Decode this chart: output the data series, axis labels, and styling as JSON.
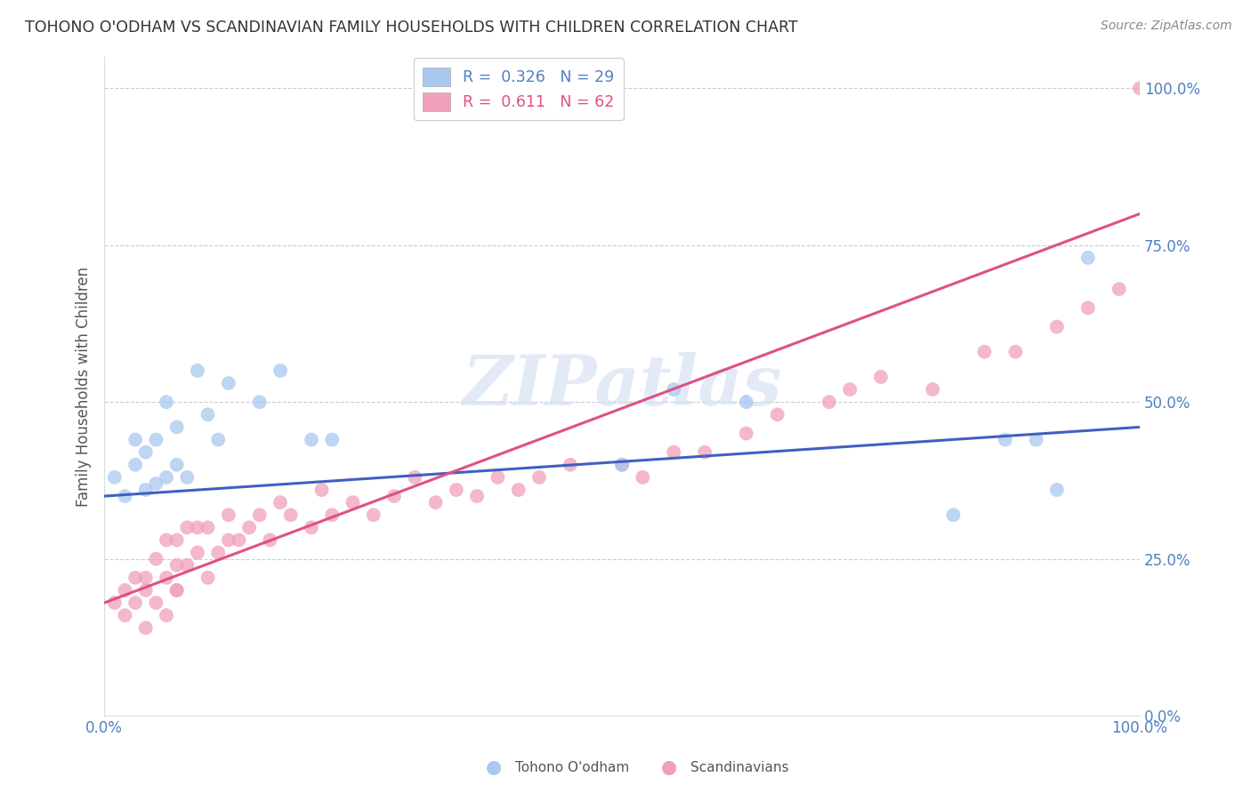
{
  "title": "TOHONO O'ODHAM VS SCANDINAVIAN FAMILY HOUSEHOLDS WITH CHILDREN CORRELATION CHART",
  "source": "Source: ZipAtlas.com",
  "ylabel": "Family Households with Children",
  "watermark": "ZIPatlas",
  "blue_label": "Tohono O'odham",
  "pink_label": "Scandinavians",
  "blue_R": "0.326",
  "blue_N": "29",
  "pink_R": "0.611",
  "pink_N": "62",
  "blue_color": "#A8C8F0",
  "pink_color": "#F0A0B8",
  "blue_line_color": "#4060C0",
  "pink_line_color": "#E05080",
  "tick_color": "#5080C0",
  "ymin": 0.0,
  "ymax": 1.05,
  "xmin": 0.0,
  "xmax": 1.0,
  "yticks": [
    0.0,
    0.25,
    0.5,
    0.75,
    1.0
  ],
  "ytick_labels": [
    "0.0%",
    "25.0%",
    "50.0%",
    "75.0%",
    "100.0%"
  ],
  "blue_x": [
    0.01,
    0.02,
    0.03,
    0.03,
    0.04,
    0.04,
    0.05,
    0.05,
    0.06,
    0.06,
    0.07,
    0.07,
    0.08,
    0.09,
    0.1,
    0.11,
    0.12,
    0.15,
    0.17,
    0.2,
    0.22,
    0.5,
    0.55,
    0.62,
    0.82,
    0.87,
    0.9,
    0.92,
    0.95
  ],
  "blue_y": [
    0.38,
    0.35,
    0.4,
    0.44,
    0.36,
    0.42,
    0.37,
    0.44,
    0.5,
    0.38,
    0.46,
    0.4,
    0.38,
    0.55,
    0.48,
    0.44,
    0.53,
    0.5,
    0.55,
    0.44,
    0.44,
    0.4,
    0.52,
    0.5,
    0.32,
    0.44,
    0.44,
    0.36,
    0.73
  ],
  "pink_x": [
    0.01,
    0.02,
    0.02,
    0.03,
    0.03,
    0.04,
    0.04,
    0.04,
    0.05,
    0.05,
    0.06,
    0.06,
    0.06,
    0.07,
    0.07,
    0.07,
    0.07,
    0.08,
    0.08,
    0.09,
    0.09,
    0.1,
    0.1,
    0.11,
    0.12,
    0.12,
    0.13,
    0.14,
    0.15,
    0.16,
    0.17,
    0.18,
    0.2,
    0.21,
    0.22,
    0.24,
    0.26,
    0.28,
    0.3,
    0.32,
    0.34,
    0.36,
    0.38,
    0.4,
    0.42,
    0.45,
    0.5,
    0.52,
    0.55,
    0.58,
    0.62,
    0.65,
    0.7,
    0.72,
    0.75,
    0.8,
    0.85,
    0.88,
    0.92,
    0.95,
    0.98,
    1.0
  ],
  "pink_y": [
    0.18,
    0.2,
    0.16,
    0.22,
    0.18,
    0.2,
    0.14,
    0.22,
    0.18,
    0.25,
    0.16,
    0.22,
    0.28,
    0.2,
    0.24,
    0.2,
    0.28,
    0.24,
    0.3,
    0.26,
    0.3,
    0.22,
    0.3,
    0.26,
    0.28,
    0.32,
    0.28,
    0.3,
    0.32,
    0.28,
    0.34,
    0.32,
    0.3,
    0.36,
    0.32,
    0.34,
    0.32,
    0.35,
    0.38,
    0.34,
    0.36,
    0.35,
    0.38,
    0.36,
    0.38,
    0.4,
    0.4,
    0.38,
    0.42,
    0.42,
    0.45,
    0.48,
    0.5,
    0.52,
    0.54,
    0.52,
    0.58,
    0.58,
    0.62,
    0.65,
    0.68,
    1.0
  ],
  "blue_line_x0": 0.0,
  "blue_line_y0": 0.35,
  "blue_line_x1": 1.0,
  "blue_line_y1": 0.46,
  "pink_line_x0": 0.0,
  "pink_line_y0": 0.18,
  "pink_line_x1": 1.0,
  "pink_line_y1": 0.8
}
